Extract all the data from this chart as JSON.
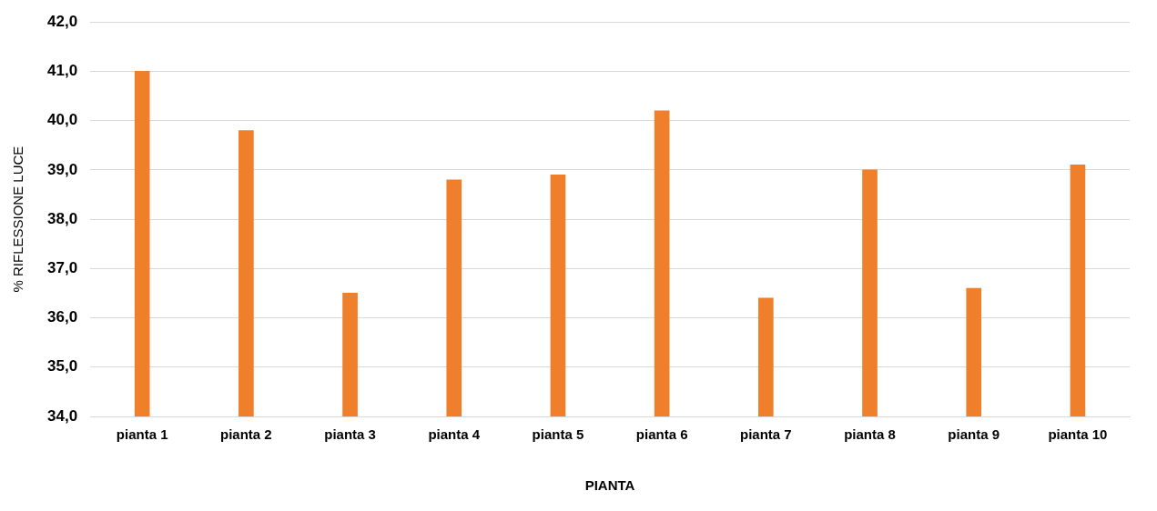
{
  "chart_data": {
    "type": "bar",
    "xlabel": "PIANTA",
    "ylabel": "% RIFLESSIONE LUCE",
    "categories": [
      "pianta 1",
      "pianta 2",
      "pianta 3",
      "pianta 4",
      "pianta 5",
      "pianta 6",
      "pianta 7",
      "pianta 8",
      "pianta 9",
      "pianta 10"
    ],
    "values": [
      41.0,
      39.8,
      36.5,
      38.8,
      38.9,
      40.2,
      36.4,
      39.0,
      36.6,
      39.1
    ],
    "color": "#f07f2c",
    "ylim": [
      34,
      42
    ],
    "yticks": [
      {
        "value": 34,
        "label": "34,0"
      },
      {
        "value": 35,
        "label": "35,0"
      },
      {
        "value": 36,
        "label": "36,0"
      },
      {
        "value": 37,
        "label": "37,0"
      },
      {
        "value": 38,
        "label": "38,0"
      },
      {
        "value": 39,
        "label": "39,0"
      },
      {
        "value": 40,
        "label": "40,0"
      },
      {
        "value": 41,
        "label": "41,0"
      },
      {
        "value": 42,
        "label": "42,0"
      }
    ],
    "grid": "y",
    "legend": false
  }
}
